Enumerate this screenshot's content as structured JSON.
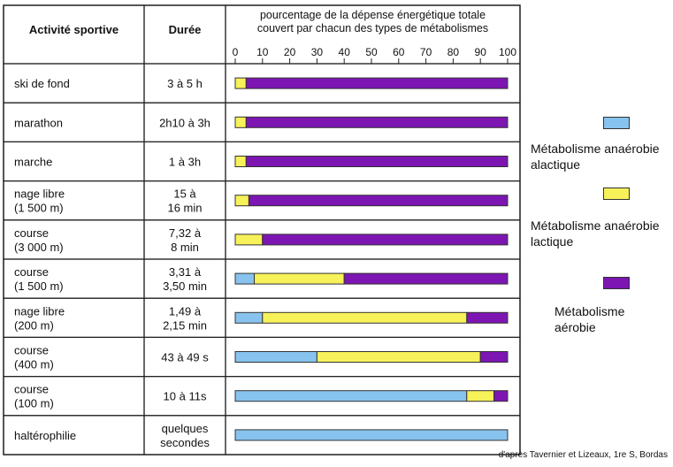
{
  "table": {
    "col_activity": "Activité sportive",
    "col_duration": "Durée",
    "col_chart_line1": "pourcentage de la dépense énergétique totale",
    "col_chart_line2": "couvert par chacun des types de métabolismes"
  },
  "credit": "d'après Tavernier et Lizeaux, 1re S, Bordas",
  "colors": {
    "alactic": "#87c3ee",
    "lactic": "#f7f15a",
    "aerobic": "#7d15b3",
    "border": "#333333"
  },
  "legend": [
    {
      "line1": "Métabolisme anaérobie",
      "line2": "alactique",
      "color": "#87c3ee"
    },
    {
      "line1": "Métabolisme anaérobie",
      "line2": "lactique",
      "color": "#f7f15a"
    },
    {
      "line1": "Métabolisme",
      "line2": "aérobie",
      "color": "#7d15b3"
    }
  ],
  "chart_data": {
    "type": "bar",
    "orientation": "horizontal",
    "stacked": true,
    "xlim": [
      0,
      100
    ],
    "xticks": [
      "0",
      "10",
      "20",
      "30",
      "40",
      "50",
      "60",
      "70",
      "80",
      "90",
      "100"
    ],
    "categories": [
      {
        "activity": [
          "ski de fond"
        ],
        "duration": [
          "3 à 5 h"
        ]
      },
      {
        "activity": [
          "marathon"
        ],
        "duration": [
          "2h10 à 3h"
        ]
      },
      {
        "activity": [
          "marche"
        ],
        "duration": [
          "1 à 3h"
        ]
      },
      {
        "activity": [
          "nage libre",
          "(1 500 m)"
        ],
        "duration": [
          "15 à",
          "16 min"
        ]
      },
      {
        "activity": [
          "course",
          "(3 000 m)"
        ],
        "duration": [
          "7,32 à",
          "8 min"
        ]
      },
      {
        "activity": [
          "course",
          "(1 500 m)"
        ],
        "duration": [
          "3,31 à",
          "3,50 min"
        ]
      },
      {
        "activity": [
          "nage libre",
          "(200 m)"
        ],
        "duration": [
          "1,49 à",
          "2,15 min"
        ]
      },
      {
        "activity": [
          "course",
          "(400 m)"
        ],
        "duration": [
          "43 à 49 s"
        ]
      },
      {
        "activity": [
          "course",
          "(100 m)"
        ],
        "duration": [
          "10 à 11s"
        ]
      },
      {
        "activity": [
          "haltérophilie"
        ],
        "duration": [
          "quelques",
          "secondes"
        ]
      }
    ],
    "series": [
      {
        "name": "Métabolisme anaérobie alactique",
        "values": [
          0,
          0,
          0,
          0,
          0,
          7,
          10,
          30,
          85,
          100
        ]
      },
      {
        "name": "Métabolisme anaérobie lactique",
        "values": [
          4,
          4,
          4,
          5,
          10,
          33,
          75,
          60,
          10,
          0
        ]
      },
      {
        "name": "Métabolisme aérobie",
        "values": [
          96,
          96,
          96,
          95,
          90,
          60,
          15,
          10,
          5,
          0
        ]
      }
    ]
  }
}
